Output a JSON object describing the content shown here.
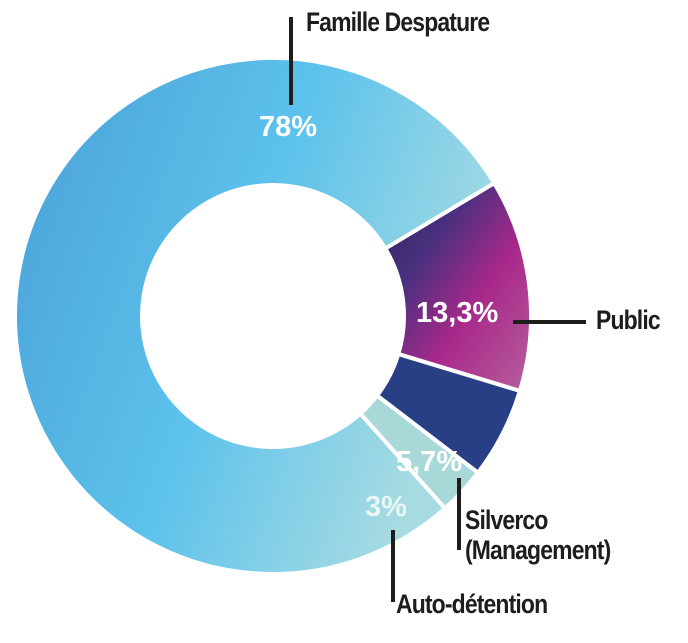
{
  "chart_data": {
    "type": "pie",
    "variant": "donut",
    "title": "",
    "slices": [
      {
        "name": "Public",
        "value": 13.3,
        "label": "13,3%",
        "color": "#a0287f"
      },
      {
        "name": "Silverco (Management)",
        "value": 5.7,
        "label": "5,7%",
        "color": "#283f86"
      },
      {
        "name": "Auto-détention",
        "value": 3,
        "label": "3%",
        "color": "#a8d8d8"
      },
      {
        "name": "Famille Despature",
        "value": 78,
        "label": "78%",
        "color": "#5bbde8"
      }
    ],
    "legend_names": {
      "public": "Public",
      "silverco_line1": "Silverco",
      "silverco_line2": "(Management)",
      "auto": "Auto-détention",
      "famille": "Famille Despature"
    }
  }
}
